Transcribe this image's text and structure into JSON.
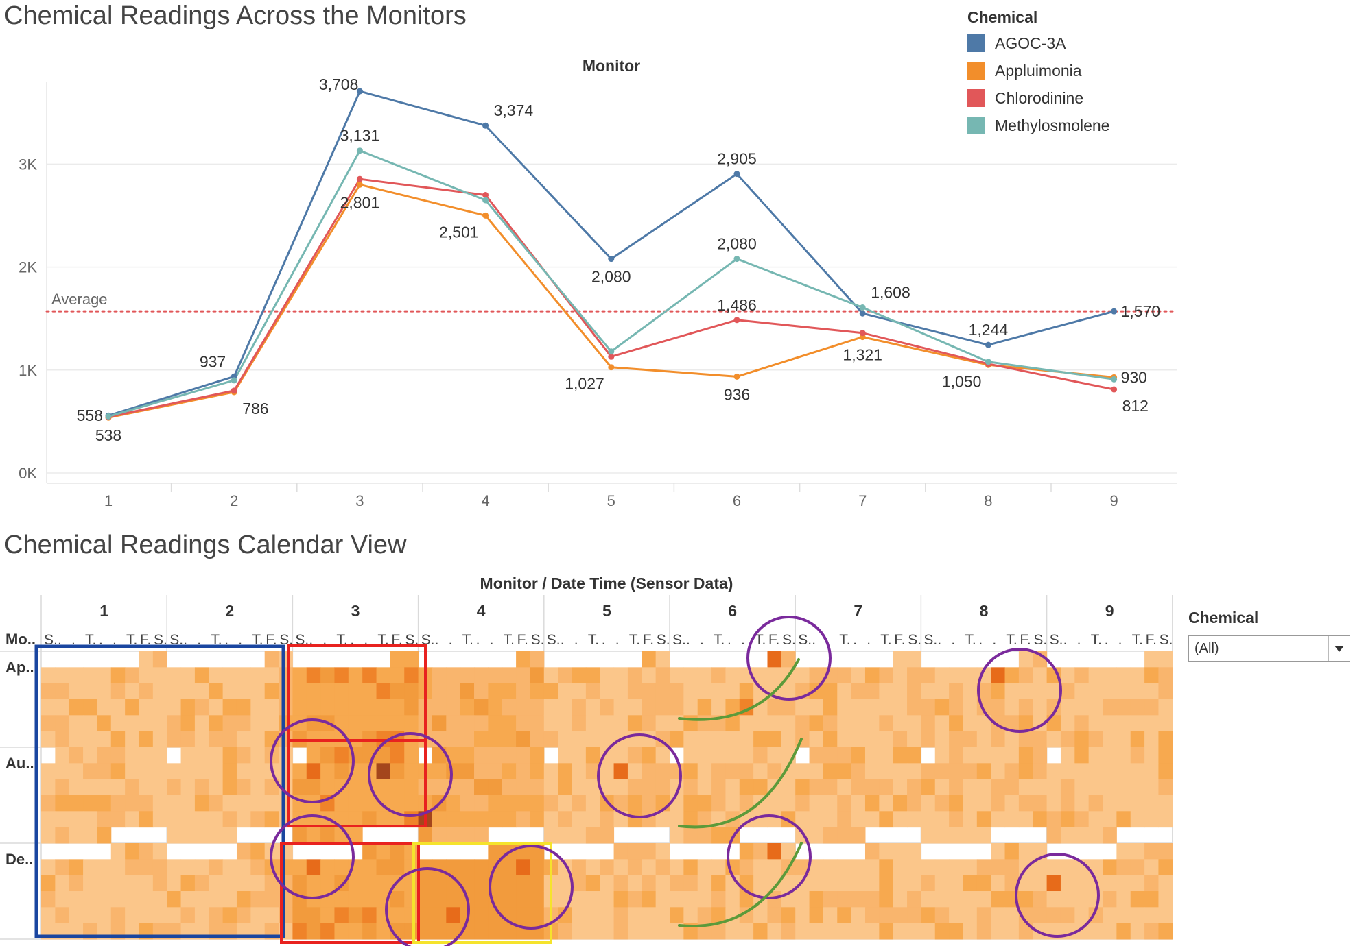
{
  "line_title": "Chemical Readings Across the Monitors",
  "calendar_title": "Chemical Readings Calendar View",
  "line_header": "Monitor",
  "calendar_header": "Monitor  /  Date Time (Sensor Data)",
  "legend": {
    "title": "Chemical",
    "items": [
      {
        "label": "AGOC-3A",
        "color": "#4e79a7"
      },
      {
        "label": "Appluimonia",
        "color": "#f28e2b"
      },
      {
        "label": "Chlorodinine",
        "color": "#e15759"
      },
      {
        "label": "Methylosmolene",
        "color": "#76b7b2"
      }
    ]
  },
  "average_label": "Average",
  "average_color": "#e15759",
  "filter": {
    "title": "Chemical",
    "value": "(All)"
  },
  "calendar": {
    "row_header": "Mo..",
    "rows": [
      "Ap..",
      "Au..",
      "De.."
    ],
    "day_letters": [
      "S.",
      ".",
      ".",
      "T.",
      ".",
      ".",
      "T.",
      "F.",
      "S."
    ],
    "monitors": [
      "1",
      "2",
      "3",
      "4",
      "5",
      "6",
      "7",
      "8",
      "9"
    ],
    "color_scale": [
      "#fbc68a",
      "#f9b56d",
      "#f7a94f",
      "#f29b3d",
      "#ef8329",
      "#e76b1a",
      "#a4461c"
    ]
  },
  "chart_data": {
    "type": "line",
    "title": "Chemical Readings Across the Monitors",
    "xlabel": "Monitor",
    "ylabel": "",
    "x": [
      1,
      2,
      3,
      4,
      5,
      6,
      7,
      8,
      9
    ],
    "ylim": [
      0,
      3800
    ],
    "yticks": [
      0,
      1000,
      2000,
      3000
    ],
    "ytick_labels": [
      "0K",
      "1K",
      "2K",
      "3K"
    ],
    "average": 1570,
    "series": [
      {
        "name": "AGOC-3A",
        "color": "#4e79a7",
        "values": [
          558,
          937,
          3708,
          3374,
          2080,
          2905,
          1550,
          1244,
          1570
        ]
      },
      {
        "name": "Appluimonia",
        "color": "#f28e2b",
        "values": [
          538,
          786,
          2801,
          2501,
          1027,
          936,
          1321,
          1050,
          930
        ]
      },
      {
        "name": "Chlorodinine",
        "color": "#e15759",
        "values": [
          545,
          800,
          2855,
          2700,
          1130,
          1486,
          1360,
          1060,
          812
        ]
      },
      {
        "name": "Methylosmolene",
        "color": "#76b7b2",
        "values": [
          550,
          900,
          3131,
          2650,
          1180,
          2080,
          1608,
          1080,
          910
        ]
      }
    ],
    "data_labels": [
      {
        "x": 1,
        "y": 558,
        "text": "558",
        "side": "left"
      },
      {
        "x": 1,
        "y": 538,
        "text": "538",
        "side": "below"
      },
      {
        "x": 2,
        "y": 937,
        "text": "937",
        "side": "above-left"
      },
      {
        "x": 2,
        "y": 786,
        "text": "786",
        "side": "below-right"
      },
      {
        "x": 3,
        "y": 3708,
        "text": "3,708",
        "side": "above-left"
      },
      {
        "x": 3,
        "y": 3131,
        "text": "3,131",
        "side": "above"
      },
      {
        "x": 3,
        "y": 2801,
        "text": "2,801",
        "side": "below"
      },
      {
        "x": 4,
        "y": 3374,
        "text": "3,374",
        "side": "above-right"
      },
      {
        "x": 4,
        "y": 2501,
        "text": "2,501",
        "side": "below-left"
      },
      {
        "x": 5,
        "y": 2080,
        "text": "2,080",
        "side": "below"
      },
      {
        "x": 5,
        "y": 1027,
        "text": "1,027",
        "side": "below-left"
      },
      {
        "x": 6,
        "y": 2905,
        "text": "2,905",
        "side": "above"
      },
      {
        "x": 6,
        "y": 2080,
        "text": "2,080",
        "side": "above"
      },
      {
        "x": 6,
        "y": 1486,
        "text": "1,486",
        "side": "above"
      },
      {
        "x": 6,
        "y": 936,
        "text": "936",
        "side": "below"
      },
      {
        "x": 7,
        "y": 1608,
        "text": "1,608",
        "side": "above-right"
      },
      {
        "x": 7,
        "y": 1321,
        "text": "1,321",
        "side": "below"
      },
      {
        "x": 8,
        "y": 1244,
        "text": "1,244",
        "side": "above"
      },
      {
        "x": 8,
        "y": 1050,
        "text": "1,050",
        "side": "below-left"
      },
      {
        "x": 9,
        "y": 1570,
        "text": "1,570",
        "side": "right"
      },
      {
        "x": 9,
        "y": 930,
        "text": "930",
        "side": "right"
      },
      {
        "x": 9,
        "y": 812,
        "text": "812",
        "side": "below-right"
      }
    ]
  }
}
